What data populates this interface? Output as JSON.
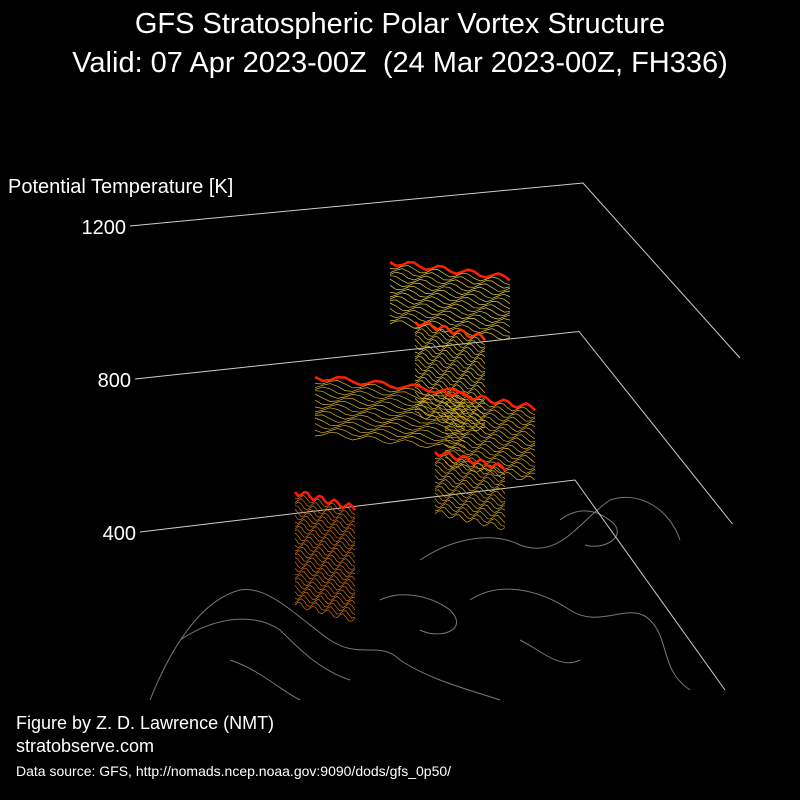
{
  "chart_data": {
    "type": "surface3d",
    "title": "GFS Stratospheric Polar Vortex Structure",
    "subtitle": "Valid: 07 Apr 2023-00Z  (24 Mar 2023-00Z, FH336)",
    "zlabel": "Potential Temperature [K]",
    "zlim": [
      400,
      1200
    ],
    "zticks": [
      400,
      800,
      1200
    ],
    "credit": "Figure by Z. D. Lawrence (NMT)",
    "website": "stratobserve.com",
    "source": "Data source: GFS, http://nomads.ncep.noaa.gov:9090/dods/gfs_0p50/"
  }
}
